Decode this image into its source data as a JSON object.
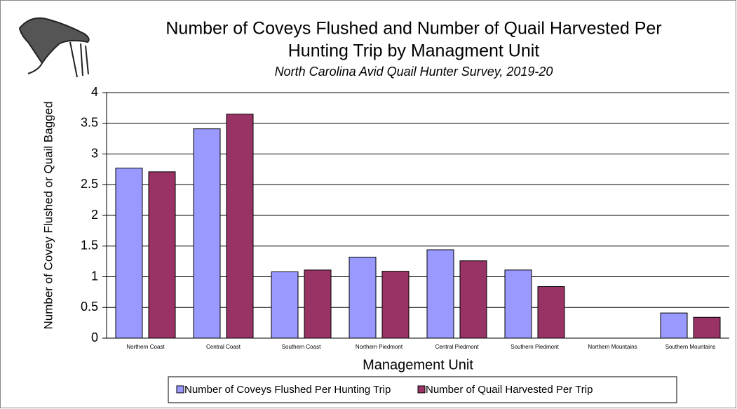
{
  "chart_data": {
    "type": "bar",
    "title": [
      "Number of Coveys  Flushed and Number of Quail Harvested Per",
      "Hunting Trip by Managment Unit"
    ],
    "subtitle": "North Carolina Avid Quail Hunter Survey, 2019-20",
    "x_label": "Management Unit",
    "y_label": "Number of Covey Flushed or Quail Bagged",
    "categories": [
      "Northern Coast",
      "Central Coast",
      "Southern Coast",
      "Northern Piedmont",
      "Central Piedmont",
      "Southern Piedmont",
      "Northern Mountains",
      "Southern Mountains"
    ],
    "series": [
      {
        "name": "Number of Coveys Flushed Per Hunting Trip",
        "color": "#9999ff",
        "values": [
          2.77,
          3.41,
          1.08,
          1.32,
          1.44,
          1.11,
          0,
          0.41
        ]
      },
      {
        "name": "Number of Quail Harvested Per Trip",
        "color": "#993366",
        "values": [
          2.71,
          3.65,
          1.11,
          1.09,
          1.26,
          0.84,
          0,
          0.34
        ]
      }
    ],
    "ylim": [
      0,
      4
    ],
    "yticks": [
      0,
      0.5,
      1,
      1.5,
      2,
      2.5,
      3,
      3.5,
      4
    ],
    "grid": true,
    "legend": "bottom"
  }
}
